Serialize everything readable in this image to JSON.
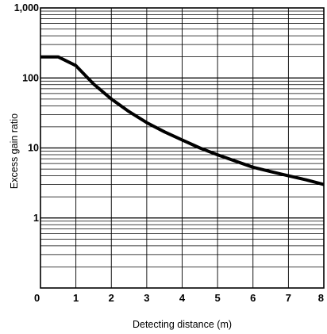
{
  "chart_data": {
    "type": "line",
    "xlabel": "Detecting distance (m)",
    "ylabel": "Excess gain ratio",
    "xlim": [
      0,
      8
    ],
    "ylim": [
      0.1,
      1000
    ],
    "y_scale": "log",
    "grid": true,
    "legend": "none",
    "x_ticks": [
      "0",
      "1",
      "2",
      "3",
      "4",
      "5",
      "6",
      "7",
      "8"
    ],
    "y_ticks": [
      "1",
      "10",
      "100",
      "1,000"
    ],
    "series": [
      {
        "x": [
          0,
          0.5,
          1,
          1.5,
          2,
          2.5,
          3,
          3.5,
          4,
          4.5,
          5,
          5.5,
          6,
          6.5,
          7,
          7.5,
          8
        ],
        "y": [
          200,
          200,
          150,
          82,
          50,
          33,
          23,
          17,
          13,
          10,
          8,
          6.5,
          5.3,
          4.6,
          4,
          3.5,
          3
        ],
        "color": "#000000"
      }
    ]
  }
}
